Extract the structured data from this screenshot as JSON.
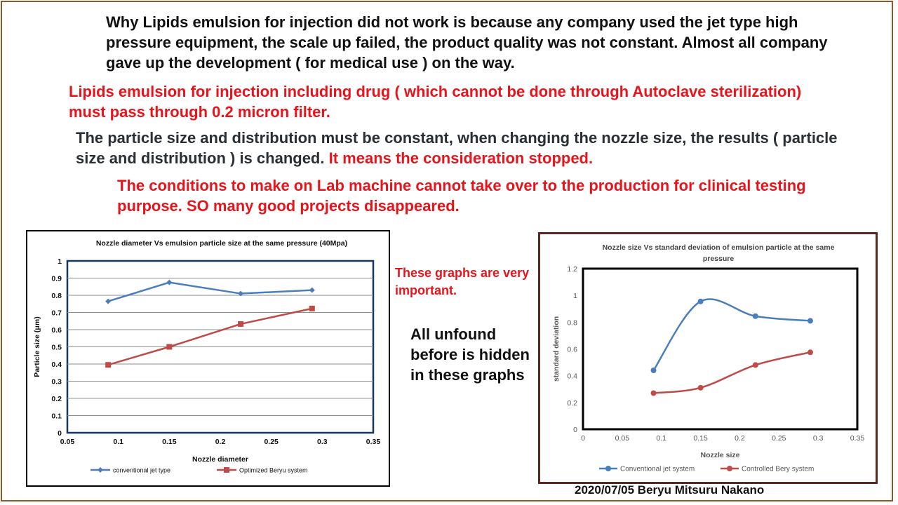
{
  "texts": {
    "t1": "Why Lipids emulsion for injection did not work is because any company used the jet type high pressure equipment, the scale up failed, the product quality was not constant. Almost all company gave up the development ( for medical use ) on the way.",
    "t2": "Lipids emulsion for injection including drug ( which cannot be done through Autoclave sterilization) must pass through 0.2 micron filter.",
    "t3a": "The particle size and distribution must be constant, when changing the nozzle size, the results ( particle size and distribution ) is changed.",
    "t3b": "It means the consideration stopped.",
    "t4": "The conditions to make on Lab machine cannot take over to the production for clinical testing purpose. SO many good projects disappeared.",
    "note1": "These graphs are very important.",
    "note2": "All unfound before is hidden in these graphs",
    "footer": "2020/07/05 Beryu Mitsuru Nakano"
  },
  "colors": {
    "blue": "#4a7ebb",
    "red": "#be4b48",
    "text_red": "#e8141b",
    "frame": "#8a5a2b"
  },
  "chart_data": [
    {
      "type": "line",
      "title": "Nozzle diameter Vs emulsion particle size at the same pressure  (40Mpa)",
      "xlabel": "Nozzle diameter",
      "ylabel": "Particle size (μm)",
      "xlim": [
        0.05,
        0.35
      ],
      "ylim": [
        0,
        1
      ],
      "xticks": [
        "0.05",
        "0.1",
        "0.15",
        "0.2",
        "0.25",
        "0.3",
        "0.35"
      ],
      "yticks": [
        "0",
        "0.1",
        "0.2",
        "0.3",
        "0.4",
        "0.5",
        "0.6",
        "0.7",
        "0.8",
        "0.9",
        "1"
      ],
      "grid": true,
      "legend": "bottom",
      "series": [
        {
          "name": "conventional jet type",
          "x": [
            0.09,
            0.15,
            0.22,
            0.29
          ],
          "y": [
            0.765,
            0.875,
            0.81,
            0.83
          ],
          "marker": "diamond",
          "color": "#4a7ebb"
        },
        {
          "name": "Optimized Beryu system",
          "x": [
            0.09,
            0.15,
            0.22,
            0.29
          ],
          "y": [
            0.395,
            0.5,
            0.633,
            0.723
          ],
          "marker": "square",
          "color": "#be4b48"
        }
      ]
    },
    {
      "type": "line",
      "title": "Nozzle size Vs standard  deviation of emulsion particle at the same pressure",
      "xlabel": "Nozzle size",
      "ylabel": "standard deviation",
      "xlim": [
        0,
        0.35
      ],
      "ylim": [
        0,
        1.2
      ],
      "xticks": [
        "0",
        "0.05",
        "0.1",
        "0.15",
        "0.2",
        "0.25",
        "0.3",
        "0.35"
      ],
      "yticks": [
        "0",
        "0.2",
        "0.4",
        "0.6",
        "0.8",
        "1",
        "1.2"
      ],
      "grid": false,
      "legend": "bottom",
      "series": [
        {
          "name": "Conventional jet system",
          "x": [
            0.09,
            0.15,
            0.22,
            0.29
          ],
          "y": [
            0.44,
            0.955,
            0.845,
            0.81
          ],
          "marker": "circle",
          "smooth": true,
          "color": "#4a7ebb"
        },
        {
          "name": "Controlled Bery system",
          "x": [
            0.09,
            0.15,
            0.22,
            0.29
          ],
          "y": [
            0.27,
            0.31,
            0.48,
            0.575
          ],
          "marker": "circle",
          "smooth": true,
          "color": "#be4b48"
        }
      ]
    }
  ]
}
